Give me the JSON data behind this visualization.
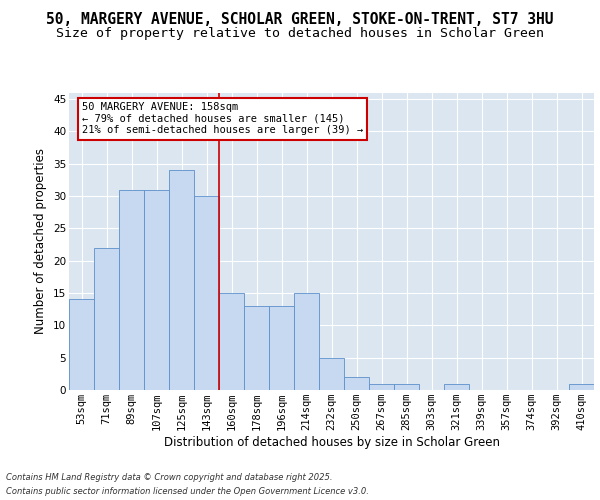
{
  "title_line1": "50, MARGERY AVENUE, SCHOLAR GREEN, STOKE-ON-TRENT, ST7 3HU",
  "title_line2": "Size of property relative to detached houses in Scholar Green",
  "xlabel": "Distribution of detached houses by size in Scholar Green",
  "ylabel": "Number of detached properties",
  "categories": [
    "53sqm",
    "71sqm",
    "89sqm",
    "107sqm",
    "125sqm",
    "143sqm",
    "160sqm",
    "178sqm",
    "196sqm",
    "214sqm",
    "232sqm",
    "250sqm",
    "267sqm",
    "285sqm",
    "303sqm",
    "321sqm",
    "339sqm",
    "357sqm",
    "374sqm",
    "392sqm",
    "410sqm"
  ],
  "values": [
    14,
    22,
    31,
    31,
    34,
    30,
    15,
    13,
    13,
    15,
    5,
    2,
    1,
    1,
    0,
    1,
    0,
    0,
    0,
    0,
    1
  ],
  "bar_color": "#c6d9f0",
  "bar_edge_color": "#5b8fcc",
  "background_color": "#dce6f1",
  "grid_color": "#ffffff",
  "annotation_text": "50 MARGERY AVENUE: 158sqm\n← 79% of detached houses are smaller (145)\n21% of semi-detached houses are larger (39) →",
  "annotation_box_color": "#ffffff",
  "annotation_box_edge_color": "#cc0000",
  "vline_color": "#cc0000",
  "ylim": [
    0,
    46
  ],
  "yticks": [
    0,
    5,
    10,
    15,
    20,
    25,
    30,
    35,
    40,
    45
  ],
  "footer_line1": "Contains HM Land Registry data © Crown copyright and database right 2025.",
  "footer_line2": "Contains public sector information licensed under the Open Government Licence v3.0.",
  "title_fontsize": 10.5,
  "subtitle_fontsize": 9.5,
  "axis_label_fontsize": 8.5,
  "tick_fontsize": 7.5,
  "annotation_fontsize": 7.5,
  "footer_fontsize": 6.0
}
